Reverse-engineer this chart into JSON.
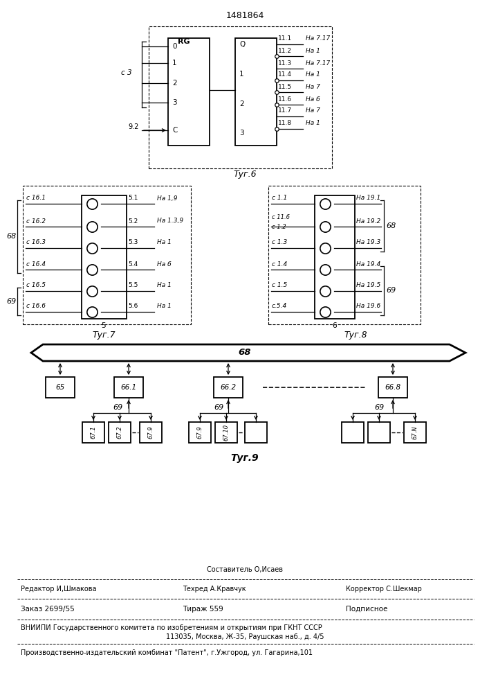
{
  "title": "1481864",
  "fig6_label": "Τуг.6",
  "fig7_label": "Τуг.7",
  "fig8_label": "Τуг.8",
  "fig9_label": "Τуг.9",
  "footer_sestavitel_top": "Составитель О,Исаев",
  "footer_redaktor": "Редактор И,Шмакова",
  "footer_tehred": "Техред А.Кравчук",
  "footer_korrektor": "Корректор С.Шекмар",
  "footer_zakaz": "Заказ 2699/55",
  "footer_tirazh": "Тираж 559",
  "footer_podpisnoe": "Подписное",
  "footer_vniip1": "ВНИИПИ Государственного комитета по изобретениям и открытиям при ГКНТ СССР",
  "footer_vniip2": "113035, Москва, Ж-35, Раушская наб., д. 4/5",
  "footer_patent": "Производственно-издательский комбинат \"Патент\", г.Ужгород, ул. Гагарина,101"
}
